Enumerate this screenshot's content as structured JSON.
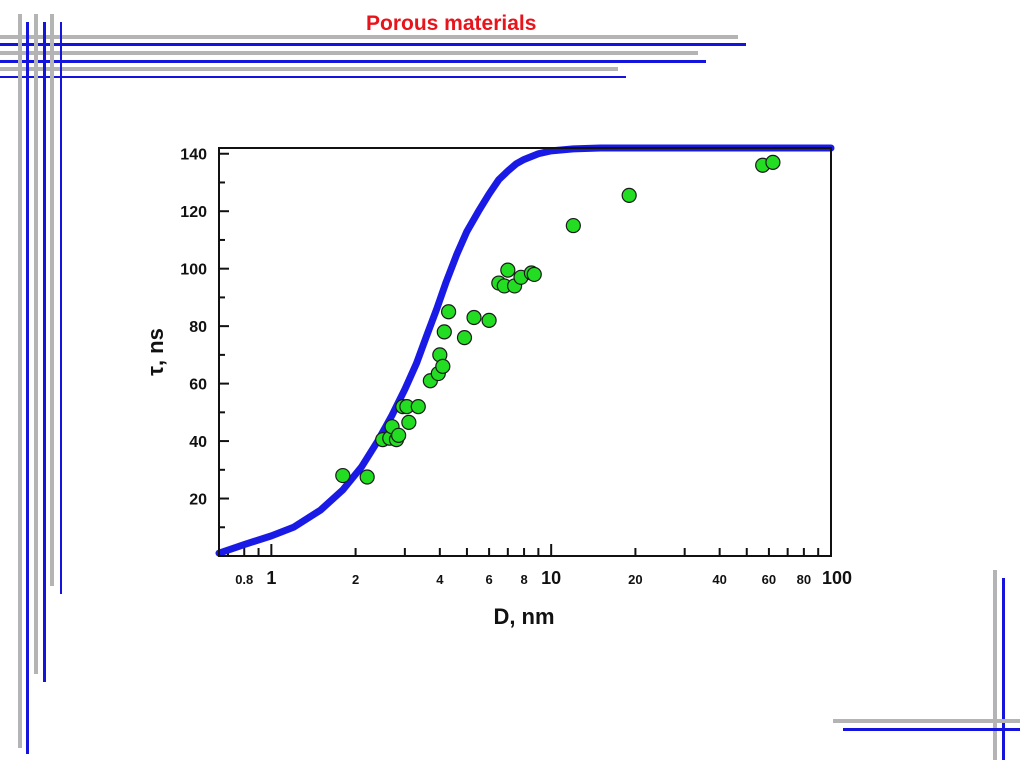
{
  "slide": {
    "title": "Porous materials",
    "frame_colors": {
      "line_gray": "#b4b4b4",
      "line_blue": "#1414dc"
    }
  },
  "chart_data": {
    "type": "scatter",
    "xlabel": "D, nm",
    "ylabel": "τ, ns",
    "xscale": "log",
    "xlim": [
      0.65,
      100
    ],
    "ylim": [
      0,
      142
    ],
    "grid": false,
    "x_tick_labels": [
      {
        "value": 0.8,
        "label": "0.8"
      },
      {
        "value": 1,
        "label": "1"
      },
      {
        "value": 2,
        "label": "2"
      },
      {
        "value": 4,
        "label": "4"
      },
      {
        "value": 6,
        "label": "6"
      },
      {
        "value": 8,
        "label": "8"
      },
      {
        "value": 10,
        "label": "10"
      },
      {
        "value": 20,
        "label": "20"
      },
      {
        "value": 40,
        "label": "40"
      },
      {
        "value": 60,
        "label": "60"
      },
      {
        "value": 80,
        "label": "80"
      },
      {
        "value": 100,
        "label": "100"
      }
    ],
    "y_tick_labels": [
      {
        "value": 20,
        "label": "20"
      },
      {
        "value": 40,
        "label": "40"
      },
      {
        "value": 60,
        "label": "60"
      },
      {
        "value": 80,
        "label": "80"
      },
      {
        "value": 100,
        "label": "100"
      },
      {
        "value": 120,
        "label": "120"
      },
      {
        "value": 140,
        "label": "140"
      }
    ],
    "series": [
      {
        "kind": "line",
        "color": "#1a1ae6",
        "x": [
          0.65,
          0.8,
          1.0,
          1.2,
          1.5,
          1.8,
          2.1,
          2.4,
          2.7,
          3.0,
          3.3,
          3.6,
          3.9,
          4.2,
          4.6,
          5.0,
          5.5,
          6.0,
          6.5,
          7.0,
          7.5,
          8.0,
          9.0,
          10,
          12,
          15,
          20,
          30,
          50,
          100
        ],
        "y": [
          1,
          4,
          7,
          10,
          16,
          23,
          31,
          40,
          49,
          58,
          67,
          77,
          86,
          95,
          105,
          113,
          120,
          126,
          131,
          134,
          136.5,
          138,
          140,
          141,
          141.7,
          142,
          142,
          142,
          142,
          142
        ]
      },
      {
        "kind": "scatter",
        "color": "#22dd22",
        "x": [
          1.8,
          2.2,
          2.5,
          2.65,
          2.7,
          2.8,
          2.85,
          2.95,
          3.05,
          3.1,
          3.35,
          3.7,
          3.95,
          4.0,
          4.1,
          4.15,
          4.3,
          4.9,
          5.3,
          6.0,
          6.5,
          6.8,
          7.0,
          7.4,
          7.8,
          8.5,
          8.7,
          12,
          19,
          57,
          62
        ],
        "y": [
          28,
          27.5,
          40.5,
          41,
          45,
          40.5,
          42,
          52,
          52,
          46.5,
          52,
          61,
          63.5,
          70,
          66,
          78,
          85,
          76,
          83,
          82,
          95,
          94,
          99.5,
          94,
          97,
          98.5,
          98,
          115,
          125.5,
          136,
          137
        ]
      }
    ]
  }
}
